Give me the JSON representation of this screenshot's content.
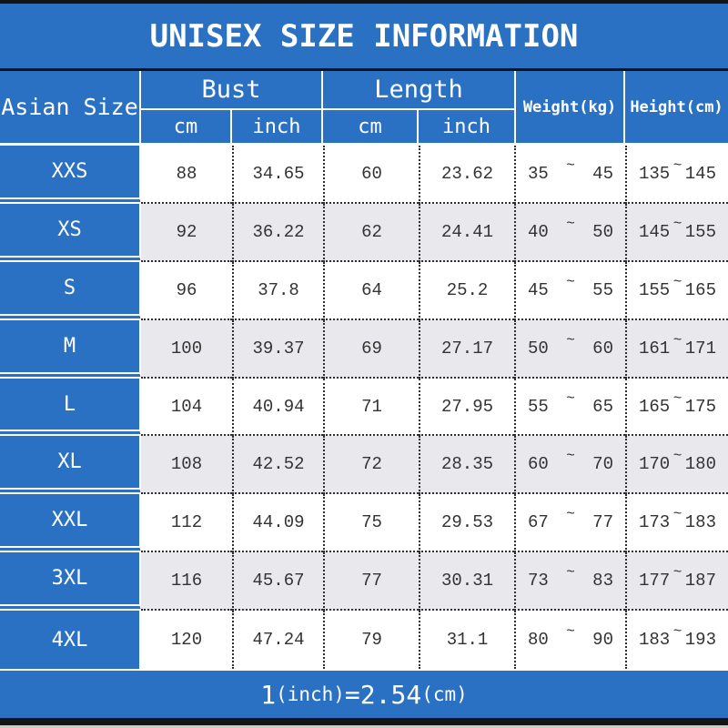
{
  "title": "UNISEX SIZE INFORMATION",
  "colors": {
    "blue": "#2b71c3",
    "stripe_gray": "#e9e8ec",
    "bar_black": "#141414",
    "text_dark": "#333333",
    "text_white": "#ffffff"
  },
  "table": {
    "size_header": "Asian Size",
    "bust_header": "Bust",
    "length_header": "Length",
    "cm_label": "cm",
    "inch_label": "inch",
    "weight_header": "Weight(kg)",
    "height_header": "Height(cm)",
    "tilde": "~",
    "rows": [
      {
        "size": "XXS",
        "bust_cm": "88",
        "bust_inch": "34.65",
        "len_cm": "60",
        "len_inch": "23.62",
        "w_min": "35",
        "w_max": "45",
        "h_min": "135",
        "h_max": "145"
      },
      {
        "size": "XS",
        "bust_cm": "92",
        "bust_inch": "36.22",
        "len_cm": "62",
        "len_inch": "24.41",
        "w_min": "40",
        "w_max": "50",
        "h_min": "145",
        "h_max": "155"
      },
      {
        "size": "S",
        "bust_cm": "96",
        "bust_inch": "37.8",
        "len_cm": "64",
        "len_inch": "25.2",
        "w_min": "45",
        "w_max": "55",
        "h_min": "155",
        "h_max": "165"
      },
      {
        "size": "M",
        "bust_cm": "100",
        "bust_inch": "39.37",
        "len_cm": "69",
        "len_inch": "27.17",
        "w_min": "50",
        "w_max": "60",
        "h_min": "161",
        "h_max": "171"
      },
      {
        "size": "L",
        "bust_cm": "104",
        "bust_inch": "40.94",
        "len_cm": "71",
        "len_inch": "27.95",
        "w_min": "55",
        "w_max": "65",
        "h_min": "165",
        "h_max": "175"
      },
      {
        "size": "XL",
        "bust_cm": "108",
        "bust_inch": "42.52",
        "len_cm": "72",
        "len_inch": "28.35",
        "w_min": "60",
        "w_max": "70",
        "h_min": "170",
        "h_max": "180"
      },
      {
        "size": "XXL",
        "bust_cm": "112",
        "bust_inch": "44.09",
        "len_cm": "75",
        "len_inch": "29.53",
        "w_min": "67",
        "w_max": "77",
        "h_min": "173",
        "h_max": "183"
      },
      {
        "size": "3XL",
        "bust_cm": "116",
        "bust_inch": "45.67",
        "len_cm": "77",
        "len_inch": "30.31",
        "w_min": "73",
        "w_max": "83",
        "h_min": "177",
        "h_max": "187"
      },
      {
        "size": "4XL",
        "bust_cm": "120",
        "bust_inch": "47.24",
        "len_cm": "79",
        "len_inch": "31.1",
        "w_min": "80",
        "w_max": "90",
        "h_min": "183",
        "h_max": "193"
      }
    ]
  },
  "footer": {
    "parts": [
      {
        "text": "1"
      },
      {
        "text": "(inch)"
      },
      {
        "text": "=2.54"
      },
      {
        "text": "(cm)"
      }
    ],
    "full_text": "1(inch)=2.54(cm)"
  },
  "chart_data": {
    "type": "table",
    "title": "UNISEX SIZE INFORMATION",
    "columns": [
      "Asian Size",
      "Bust cm",
      "Bust inch",
      "Length cm",
      "Length inch",
      "Weight(kg)",
      "Height(cm)"
    ],
    "rows": [
      [
        "XXS",
        "88",
        "34.65",
        "60",
        "23.62",
        "35~45",
        "135~145"
      ],
      [
        "XS",
        "92",
        "36.22",
        "62",
        "24.41",
        "40~50",
        "145~155"
      ],
      [
        "S",
        "96",
        "37.8",
        "64",
        "25.2",
        "45~55",
        "155~165"
      ],
      [
        "M",
        "100",
        "39.37",
        "69",
        "27.17",
        "50~60",
        "161~171"
      ],
      [
        "L",
        "104",
        "40.94",
        "71",
        "27.95",
        "55~65",
        "165~175"
      ],
      [
        "XL",
        "108",
        "42.52",
        "72",
        "28.35",
        "60~70",
        "170~180"
      ],
      [
        "XXL",
        "112",
        "44.09",
        "75",
        "29.53",
        "67~77",
        "173~183"
      ],
      [
        "3XL",
        "116",
        "45.67",
        "77",
        "30.31",
        "73~83",
        "177~187"
      ],
      [
        "4XL",
        "120",
        "47.24",
        "79",
        "31.1",
        "80~90",
        "183~193"
      ]
    ],
    "note": "1(inch)=2.54(cm)"
  }
}
